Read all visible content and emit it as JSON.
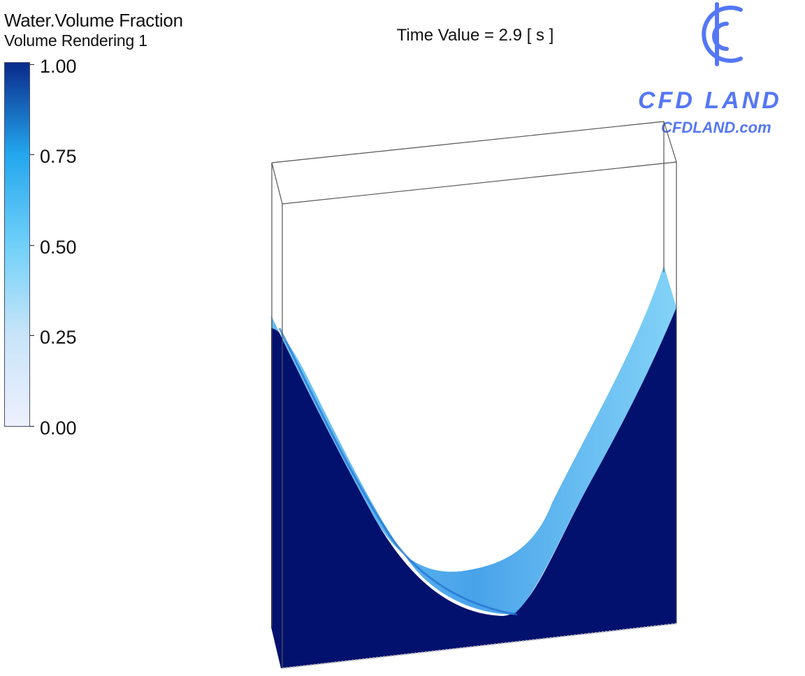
{
  "legend": {
    "title": "Water.Volume Fraction",
    "subtitle": "Volume Rendering 1",
    "colors": {
      "max": "#0a2a8a",
      "mid_high": "#23a6ee",
      "mid": "#6fd0f8",
      "low": "#c8e4f8",
      "min": "#eef0ff"
    },
    "ticks": [
      "1.00",
      "0.75",
      "0.50",
      "0.25",
      "0.00"
    ]
  },
  "viewport": {
    "time_label": "Time Value = 2.9 [ s ]"
  },
  "logo": {
    "name": "CFD LAND",
    "url": "CFDLAND.com",
    "color": "#5577f5"
  },
  "render": {
    "water_color": "#03116e",
    "interface_color": "#5ab6ee",
    "box_line_color": "#555555"
  }
}
